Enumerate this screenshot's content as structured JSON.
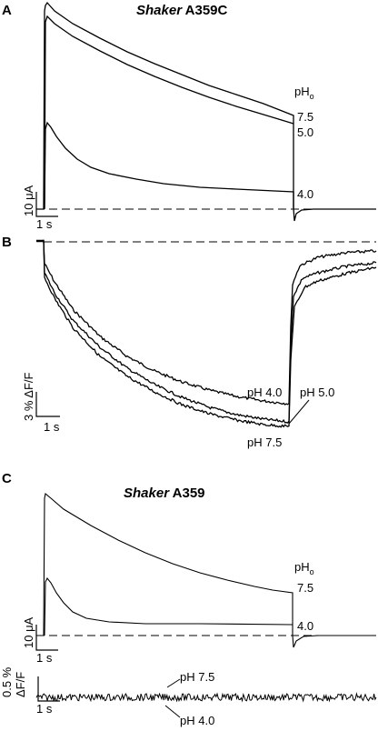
{
  "panels": {
    "a": {
      "letter": "A",
      "title_italic": "Shaker",
      "title_rest": " A359C",
      "legend_main": "pH",
      "legend_sub": "o",
      "trace_labels": [
        "7.5",
        "5.0",
        "4.0"
      ],
      "scale_y": "10 μA",
      "scale_x": "1 s"
    },
    "b": {
      "letter": "B",
      "trace_labels": [
        "pH 4.0",
        "pH 5.0",
        "pH 7.5"
      ],
      "scale_y": "3 % ΔF/F",
      "scale_x": "1 s"
    },
    "c": {
      "letter": "C",
      "title_italic": "Shaker",
      "title_rest": " A359",
      "legend_main": "pH",
      "legend_sub": "o",
      "trace_labels": [
        "7.5",
        "4.0"
      ],
      "scale_y": "10 μA",
      "scale_x": "1 s",
      "fluor_scale_y_top": "0.5 %",
      "fluor_scale_y_bottom": "ΔF/F",
      "fluor_scale_x": "1 s",
      "fluor_labels": [
        "pH 7.5",
        "pH 4.0"
      ]
    }
  }
}
